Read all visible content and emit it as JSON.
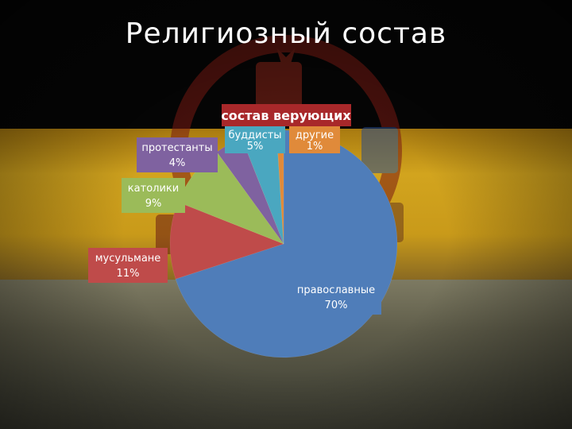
{
  "slide": {
    "title": "Религиозный состав"
  },
  "chart_data": {
    "type": "pie",
    "title": "состав верующих",
    "slices": [
      {
        "label": "православные",
        "value": 70,
        "value_label": "70%",
        "color": "#4f7db9"
      },
      {
        "label": "мусульмане",
        "value": 11,
        "value_label": "11%",
        "color": "#bf4b4a"
      },
      {
        "label": "католики",
        "value": 9,
        "value_label": "9%",
        "color": "#9bbb59"
      },
      {
        "label": "протестанты",
        "value": 4,
        "value_label": "4%",
        "color": "#7f62a0"
      },
      {
        "label": "буддисты",
        "value": 5,
        "value_label": "5%",
        "color": "#4aa7c0"
      },
      {
        "label": "другие",
        "value": 1,
        "value_label": "1%",
        "color": "#e08a3a"
      }
    ]
  }
}
